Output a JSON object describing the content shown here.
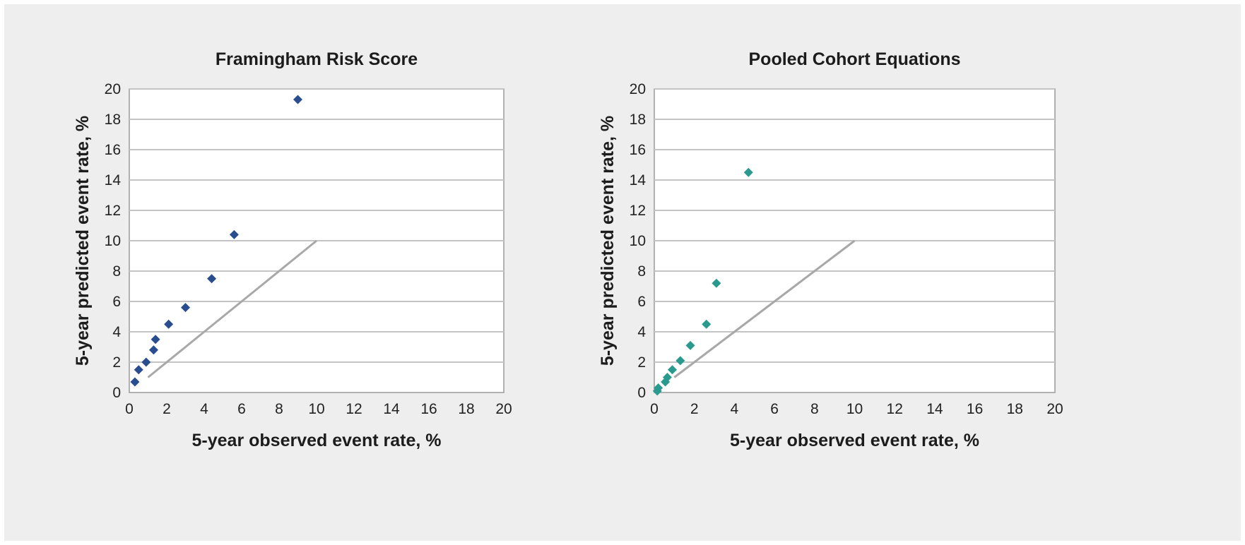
{
  "chart_data": [
    {
      "type": "scatter",
      "title": "Framingham Risk Score",
      "xlabel": "5-year observed event rate, %",
      "ylabel": "5-year predicted event rate, %",
      "xlim": [
        0,
        20
      ],
      "ylim": [
        0,
        20
      ],
      "xticks": [
        "0",
        "2",
        "4",
        "6",
        "8",
        "10",
        "12",
        "14",
        "16",
        "18",
        "20"
      ],
      "yticks": [
        "0",
        "2",
        "4",
        "6",
        "8",
        "10",
        "12",
        "14",
        "16",
        "18",
        "20"
      ],
      "grid": true,
      "marker_color": "#2a4d8f",
      "reference_line_color": "#a8a8a8",
      "points": [
        {
          "x": 0.3,
          "y": 0.7
        },
        {
          "x": 0.5,
          "y": 1.5
        },
        {
          "x": 0.9,
          "y": 2.0
        },
        {
          "x": 1.3,
          "y": 2.8
        },
        {
          "x": 1.4,
          "y": 3.5
        },
        {
          "x": 2.1,
          "y": 4.5
        },
        {
          "x": 3.0,
          "y": 5.6
        },
        {
          "x": 4.4,
          "y": 7.5
        },
        {
          "x": 5.6,
          "y": 10.4
        },
        {
          "x": 9.0,
          "y": 19.3
        }
      ],
      "reference_line": [
        {
          "x": 1,
          "y": 1
        },
        {
          "x": 2,
          "y": 2
        },
        {
          "x": 3,
          "y": 3
        },
        {
          "x": 4,
          "y": 4
        },
        {
          "x": 5,
          "y": 5
        },
        {
          "x": 6,
          "y": 6
        },
        {
          "x": 7,
          "y": 7
        },
        {
          "x": 8,
          "y": 8
        },
        {
          "x": 9,
          "y": 9
        },
        {
          "x": 10,
          "y": 10
        }
      ]
    },
    {
      "type": "scatter",
      "title": "Pooled Cohort Equations",
      "xlabel": "5-year observed event rate, %",
      "ylabel": "5-year predicted event rate, %",
      "xlim": [
        0,
        20
      ],
      "ylim": [
        0,
        20
      ],
      "xticks": [
        "0",
        "2",
        "4",
        "6",
        "8",
        "10",
        "12",
        "14",
        "16",
        "18",
        "20"
      ],
      "yticks": [
        "0",
        "2",
        "4",
        "6",
        "8",
        "10",
        "12",
        "14",
        "16",
        "18",
        "20"
      ],
      "grid": true,
      "marker_color": "#2a9a8e",
      "reference_line_color": "#a8a8a8",
      "points": [
        {
          "x": 0.15,
          "y": 0.1
        },
        {
          "x": 0.2,
          "y": 0.3
        },
        {
          "x": 0.55,
          "y": 0.7
        },
        {
          "x": 0.65,
          "y": 1.0
        },
        {
          "x": 0.9,
          "y": 1.5
        },
        {
          "x": 1.3,
          "y": 2.1
        },
        {
          "x": 1.8,
          "y": 3.1
        },
        {
          "x": 2.6,
          "y": 4.5
        },
        {
          "x": 3.1,
          "y": 7.2
        },
        {
          "x": 4.7,
          "y": 14.5
        }
      ],
      "reference_line": [
        {
          "x": 1,
          "y": 1
        },
        {
          "x": 2,
          "y": 2
        },
        {
          "x": 3,
          "y": 3
        },
        {
          "x": 4,
          "y": 4
        },
        {
          "x": 5,
          "y": 5
        },
        {
          "x": 6,
          "y": 6
        },
        {
          "x": 7,
          "y": 7
        },
        {
          "x": 8,
          "y": 8
        },
        {
          "x": 9,
          "y": 9
        },
        {
          "x": 10,
          "y": 10
        }
      ]
    }
  ]
}
